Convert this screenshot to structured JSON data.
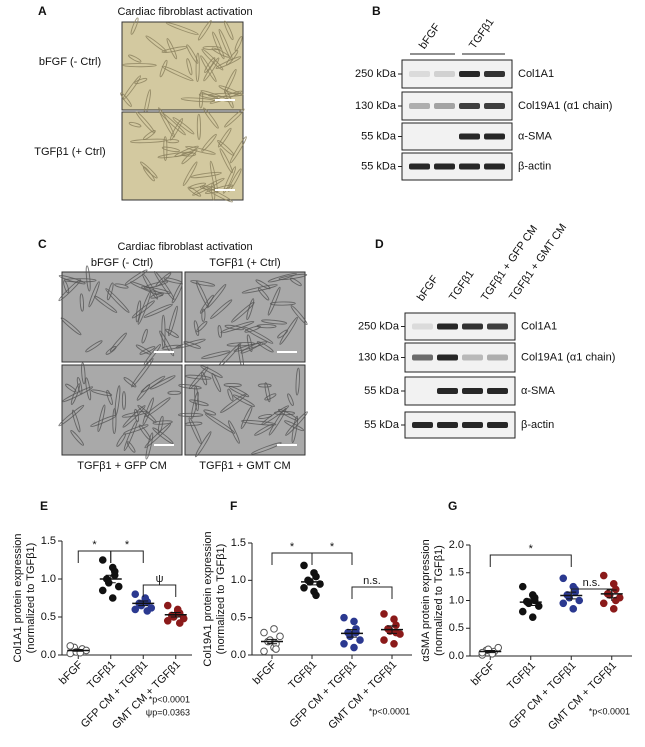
{
  "panels": {
    "A": {
      "label": "A",
      "title": "Cardiac fibroblast activation",
      "rows": [
        "bFGF (- Ctrl)",
        "TGFβ1 (+ Ctrl)"
      ]
    },
    "B": {
      "label": "B",
      "lanes": [
        "bFGF",
        "TGFβ1"
      ],
      "markers": [
        "250 kDa",
        "130 kDa",
        "55 kDa",
        "55 kDa"
      ],
      "proteins": [
        "Col1A1",
        "Col19A1 (α1 chain)",
        "α-SMA",
        "β-actin"
      ]
    },
    "C": {
      "label": "C",
      "title": "Cardiac fibroblast activation",
      "top": [
        "bFGF (- Ctrl)",
        "TGFβ1 (+ Ctrl)"
      ],
      "bottom": [
        "TGFβ1 + GFP CM",
        "TGFβ1 + GMT CM"
      ]
    },
    "D": {
      "label": "D",
      "lanes": [
        "bFGF",
        "TGFβ1",
        "TGFβ1 + GFP CM",
        "TGFβ1 + GMT CM"
      ],
      "markers": [
        "250 kDa",
        "130 kDa",
        "55 kDa",
        "55 kDa"
      ],
      "proteins": [
        "Col1A1",
        "Col19A1 (α1 chain)",
        "α-SMA",
        "β-actin"
      ]
    }
  },
  "chart_data": [
    {
      "type": "dot",
      "panel": "E",
      "ylabel": [
        "Col1A1 protein expression",
        "(normalized to TGFβ1)"
      ],
      "categories": [
        "bFGF",
        "TGFβ1",
        "GFP CM + TGFβ1",
        "GMT CM + TGFβ1"
      ],
      "colors": [
        "#ffffff",
        "#111111",
        "#2b3990",
        "#8b1a1a"
      ],
      "values": [
        0.06,
        1.0,
        0.68,
        0.53
      ],
      "sem": [
        0.01,
        0.05,
        0.03,
        0.03
      ],
      "points": [
        [
          0.02,
          0.05,
          0.08,
          0.1,
          0.04,
          0.06,
          0.12,
          0.03
        ],
        [
          1.25,
          1.15,
          1.05,
          1.0,
          0.95,
          0.9,
          0.85,
          0.75,
          1.1
        ],
        [
          0.8,
          0.75,
          0.7,
          0.68,
          0.65,
          0.62,
          0.6,
          0.72,
          0.58
        ],
        [
          0.65,
          0.6,
          0.55,
          0.52,
          0.5,
          0.48,
          0.45,
          0.58,
          0.42
        ]
      ],
      "ylim": [
        0,
        1.5
      ],
      "yticks": [
        {
          "value": 0,
          "label": "0.0"
        },
        0.5,
        {
          "value": 1,
          "label": "1.0"
        },
        1.5
      ],
      "annotations": [
        {
          "from": 0,
          "to": 1,
          "label": "*"
        },
        {
          "from": 1,
          "to": 2,
          "label": "*"
        },
        {
          "from": 2,
          "to": 3,
          "label": "ψ"
        }
      ],
      "footnotes": [
        "*p<0.0001",
        "ψp=0.0363"
      ]
    },
    {
      "type": "dot",
      "panel": "F",
      "ylabel": [
        "Col19A1 protein expression",
        "(normalized to TGFβ1)"
      ],
      "categories": [
        "bFGF",
        "TGFβ1",
        "GFP CM + TGFβ1",
        "GMT CM + TGFβ1"
      ],
      "colors": [
        "#ffffff",
        "#111111",
        "#2b3990",
        "#8b1a1a"
      ],
      "values": [
        0.18,
        0.98,
        0.29,
        0.34
      ],
      "sem": [
        0.03,
        0.04,
        0.05,
        0.05
      ],
      "points": [
        [
          0.05,
          0.1,
          0.15,
          0.18,
          0.2,
          0.25,
          0.3,
          0.35,
          0.08
        ],
        [
          1.2,
          1.1,
          1.05,
          1.0,
          0.98,
          0.95,
          0.9,
          0.85,
          0.8
        ],
        [
          0.5,
          0.45,
          0.35,
          0.3,
          0.25,
          0.2,
          0.15,
          0.1,
          0.3
        ],
        [
          0.55,
          0.48,
          0.4,
          0.35,
          0.32,
          0.28,
          0.2,
          0.15,
          0.3
        ]
      ],
      "ylim": [
        0,
        1.5
      ],
      "yticks": [
        {
          "value": 0,
          "label": "0.0"
        },
        0.5,
        {
          "value": 1,
          "label": "1.0"
        },
        1.5
      ],
      "annotations": [
        {
          "from": 0,
          "to": 1,
          "label": "*"
        },
        {
          "from": 1,
          "to": 2,
          "label": "*"
        },
        {
          "from": 2,
          "to": 3,
          "label": "n.s."
        }
      ],
      "footnotes": [
        "*p<0.0001"
      ]
    },
    {
      "type": "dot",
      "panel": "G",
      "ylabel": [
        "αSMA protein expression",
        "(normalized to TGFβ1)"
      ],
      "categories": [
        "bFGF",
        "TGFβ1",
        "GFP CM + TGFβ1",
        "GMT CM + TGFβ1"
      ],
      "colors": [
        "#ffffff",
        "#111111",
        "#2b3990",
        "#8b1a1a"
      ],
      "values": [
        0.08,
        0.97,
        1.09,
        1.12
      ],
      "sem": [
        0.02,
        0.06,
        0.06,
        0.07
      ],
      "points": [
        [
          0.02,
          0.05,
          0.08,
          0.1,
          0.12,
          0.15,
          0.06,
          0.04
        ],
        [
          1.25,
          1.1,
          1.0,
          0.98,
          0.95,
          0.9,
          0.8,
          0.7,
          1.05
        ],
        [
          1.4,
          1.25,
          1.15,
          1.1,
          1.05,
          1.0,
          0.95,
          0.85,
          1.2
        ],
        [
          1.45,
          1.3,
          1.2,
          1.12,
          1.1,
          1.05,
          0.95,
          0.85,
          1.0
        ]
      ],
      "ylim": [
        0,
        2
      ],
      "yticks": [
        {
          "value": 0,
          "label": "0.0"
        },
        0.5,
        {
          "value": 1,
          "label": "1.0"
        },
        1.5,
        {
          "value": 2,
          "label": "2.0"
        }
      ],
      "annotations": [
        {
          "from": 0,
          "to": 2,
          "label": "*"
        },
        {
          "from": 2,
          "to": 3,
          "label": "n.s."
        }
      ],
      "footnotes": [
        "*p<0.0001"
      ]
    }
  ]
}
